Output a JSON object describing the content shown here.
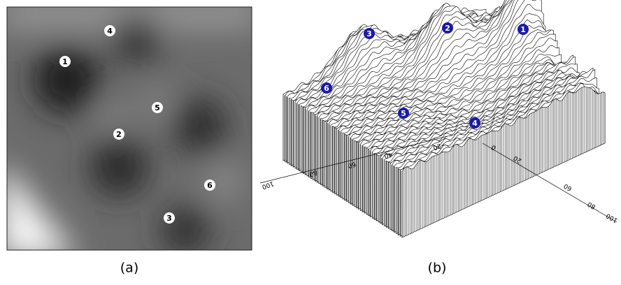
{
  "panels": [
    {
      "label": "(a)",
      "markers": [
        "1",
        "4",
        "5",
        "2",
        "6",
        "3"
      ]
    },
    {
      "label": "(b)",
      "markers": [
        "3",
        "2",
        "1",
        "6",
        "5",
        "4"
      ],
      "left_axis_ticks": [
        "100",
        "80",
        "60",
        "40",
        "20"
      ],
      "right_axis_ticks": [
        "0",
        "20",
        "60",
        "80",
        "100"
      ]
    }
  ]
}
